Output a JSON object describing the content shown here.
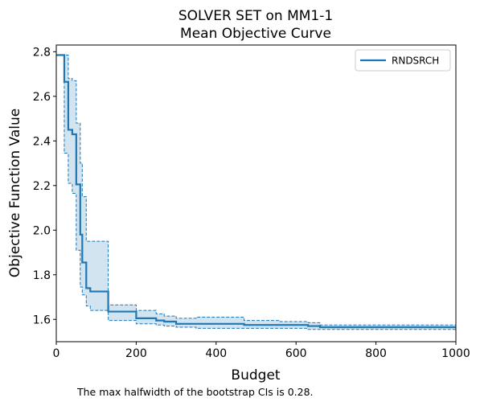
{
  "chart_data": {
    "type": "line",
    "title": "SOLVER SET on MM1-1",
    "subtitle": "Mean Objective Curve",
    "xlabel": "Budget",
    "ylabel": "Objective Function Value",
    "xlim": [
      0,
      1000
    ],
    "ylim": [
      1.5,
      2.83
    ],
    "xticks": [
      0,
      200,
      400,
      600,
      800,
      1000
    ],
    "yticks": [
      1.6,
      1.8,
      2.0,
      2.2,
      2.4,
      2.6,
      2.8
    ],
    "xtick_labels": [
      "0",
      "200",
      "400",
      "600",
      "800",
      "1000"
    ],
    "ytick_labels": [
      "1.6",
      "1.8",
      "2.0",
      "2.2",
      "2.4",
      "2.6",
      "2.8"
    ],
    "grid": false,
    "legend_position": "top-right",
    "footnote": "The max halfwidth of the bootstrap CIs is 0.28.",
    "series": [
      {
        "name": "RNDSRCH",
        "color": "#1f77b4",
        "step": "post",
        "x": [
          0,
          20,
          30,
          40,
          50,
          60,
          65,
          75,
          85,
          130,
          200,
          250,
          270,
          300,
          350,
          470,
          560,
          630,
          660,
          1000
        ],
        "y": [
          2.785,
          2.665,
          2.45,
          2.43,
          2.205,
          1.98,
          1.855,
          1.74,
          1.725,
          1.635,
          1.605,
          1.595,
          1.59,
          1.58,
          1.58,
          1.575,
          1.575,
          1.57,
          1.565,
          1.565
        ],
        "upper": [
          2.785,
          2.785,
          2.68,
          2.67,
          2.48,
          2.3,
          2.15,
          1.95,
          1.95,
          1.665,
          1.64,
          1.625,
          1.615,
          1.605,
          1.61,
          1.595,
          1.59,
          1.585,
          1.575,
          1.575
        ],
        "lower": [
          2.785,
          2.345,
          2.21,
          2.165,
          1.91,
          1.745,
          1.71,
          1.66,
          1.64,
          1.595,
          1.58,
          1.575,
          1.57,
          1.565,
          1.56,
          1.56,
          1.56,
          1.555,
          1.555,
          1.555
        ]
      }
    ]
  }
}
